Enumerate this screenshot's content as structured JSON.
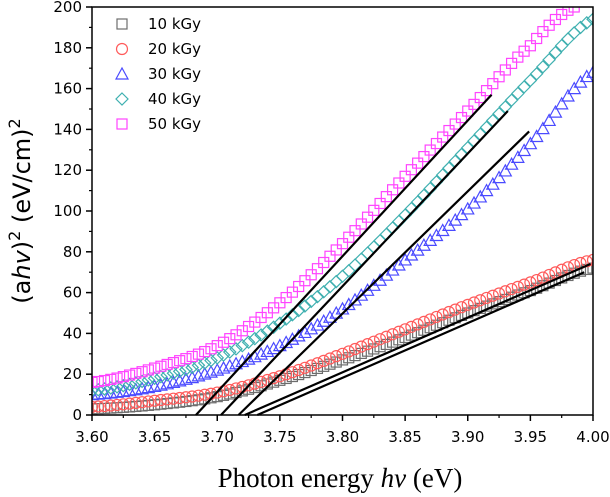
{
  "chart_data": {
    "type": "scatter",
    "title": "",
    "xlabel": "Photon energy hv (eV)",
    "xlabel_parts": {
      "pre": "Photon energy ",
      "ital": "hv",
      "post": " (eV)"
    },
    "ylabel": "(ahv)^2 (eV/cm)^2",
    "ylabel_parts": {
      "pre": "(a",
      "ital": "hv",
      "post1": ")",
      "sup1": "2",
      "post2": " (eV/cm)",
      "sup2": "2"
    },
    "xlim": [
      3.6,
      4.0
    ],
    "ylim": [
      0,
      200
    ],
    "xticks": [
      3.6,
      3.65,
      3.7,
      3.75,
      3.8,
      3.85,
      3.9,
      3.95,
      4.0
    ],
    "xtick_labels": [
      "3.60",
      "3.65",
      "3.70",
      "3.75",
      "3.80",
      "3.85",
      "3.90",
      "3.95",
      "4.00"
    ],
    "yticks": [
      0,
      20,
      40,
      60,
      80,
      100,
      120,
      140,
      160,
      180,
      200
    ],
    "ytick_labels": [
      "0",
      "20",
      "40",
      "60",
      "80",
      "100",
      "120",
      "140",
      "160",
      "180",
      "200"
    ],
    "grid": false,
    "legend_position": "top-left",
    "marker_step": 0.005,
    "series": [
      {
        "name": "10 kGy",
        "marker": "square",
        "color": "#6d6d6d",
        "x": [
          3.6,
          3.65,
          3.7,
          3.75,
          3.8,
          3.85,
          3.9,
          3.95,
          4.0
        ],
        "y": [
          3,
          5,
          9,
          17,
          27,
          38,
          50,
          61,
          72
        ],
        "fit": {
          "x": [
            3.732,
            3.993
          ],
          "y": [
            0,
            70
          ]
        }
      },
      {
        "name": "20 kGy",
        "marker": "circle",
        "color": "#ff5a5a",
        "x": [
          3.6,
          3.65,
          3.7,
          3.75,
          3.8,
          3.85,
          3.9,
          3.95,
          4.0
        ],
        "y": [
          4,
          7,
          11,
          19,
          30,
          42,
          54,
          65,
          76
        ],
        "fit": {
          "x": [
            3.722,
            3.998
          ],
          "y": [
            0,
            74
          ]
        }
      },
      {
        "name": "30 kGy",
        "marker": "triangle",
        "color": "#4a4aff",
        "x": [
          3.6,
          3.65,
          3.7,
          3.75,
          3.8,
          3.85,
          3.9,
          3.95,
          4.0
        ],
        "y": [
          10,
          14,
          22,
          34,
          52,
          76,
          101,
          133,
          168
        ],
        "fit": {
          "x": [
            3.717,
            3.949
          ],
          "y": [
            0,
            139
          ]
        }
      },
      {
        "name": "40 kGy",
        "marker": "diamond",
        "color": "#3fb0b0",
        "x": [
          3.6,
          3.65,
          3.7,
          3.75,
          3.8,
          3.85,
          3.9,
          3.95,
          4.0
        ],
        "y": [
          12,
          18,
          28,
          45,
          68,
          98,
          131,
          164,
          194
        ],
        "fit": {
          "x": [
            3.703,
            3.932
          ],
          "y": [
            0,
            149
          ]
        }
      },
      {
        "name": "50 kGy",
        "marker": "square",
        "color": "#ff44ff",
        "x": [
          3.6,
          3.65,
          3.7,
          3.75,
          3.8,
          3.85,
          3.9,
          3.95,
          3.985
        ],
        "y": [
          16,
          23,
          34,
          55,
          84,
          117,
          149,
          181,
          200
        ],
        "fit": {
          "x": [
            3.683,
            3.919
          ],
          "y": [
            0,
            157
          ]
        }
      }
    ]
  }
}
